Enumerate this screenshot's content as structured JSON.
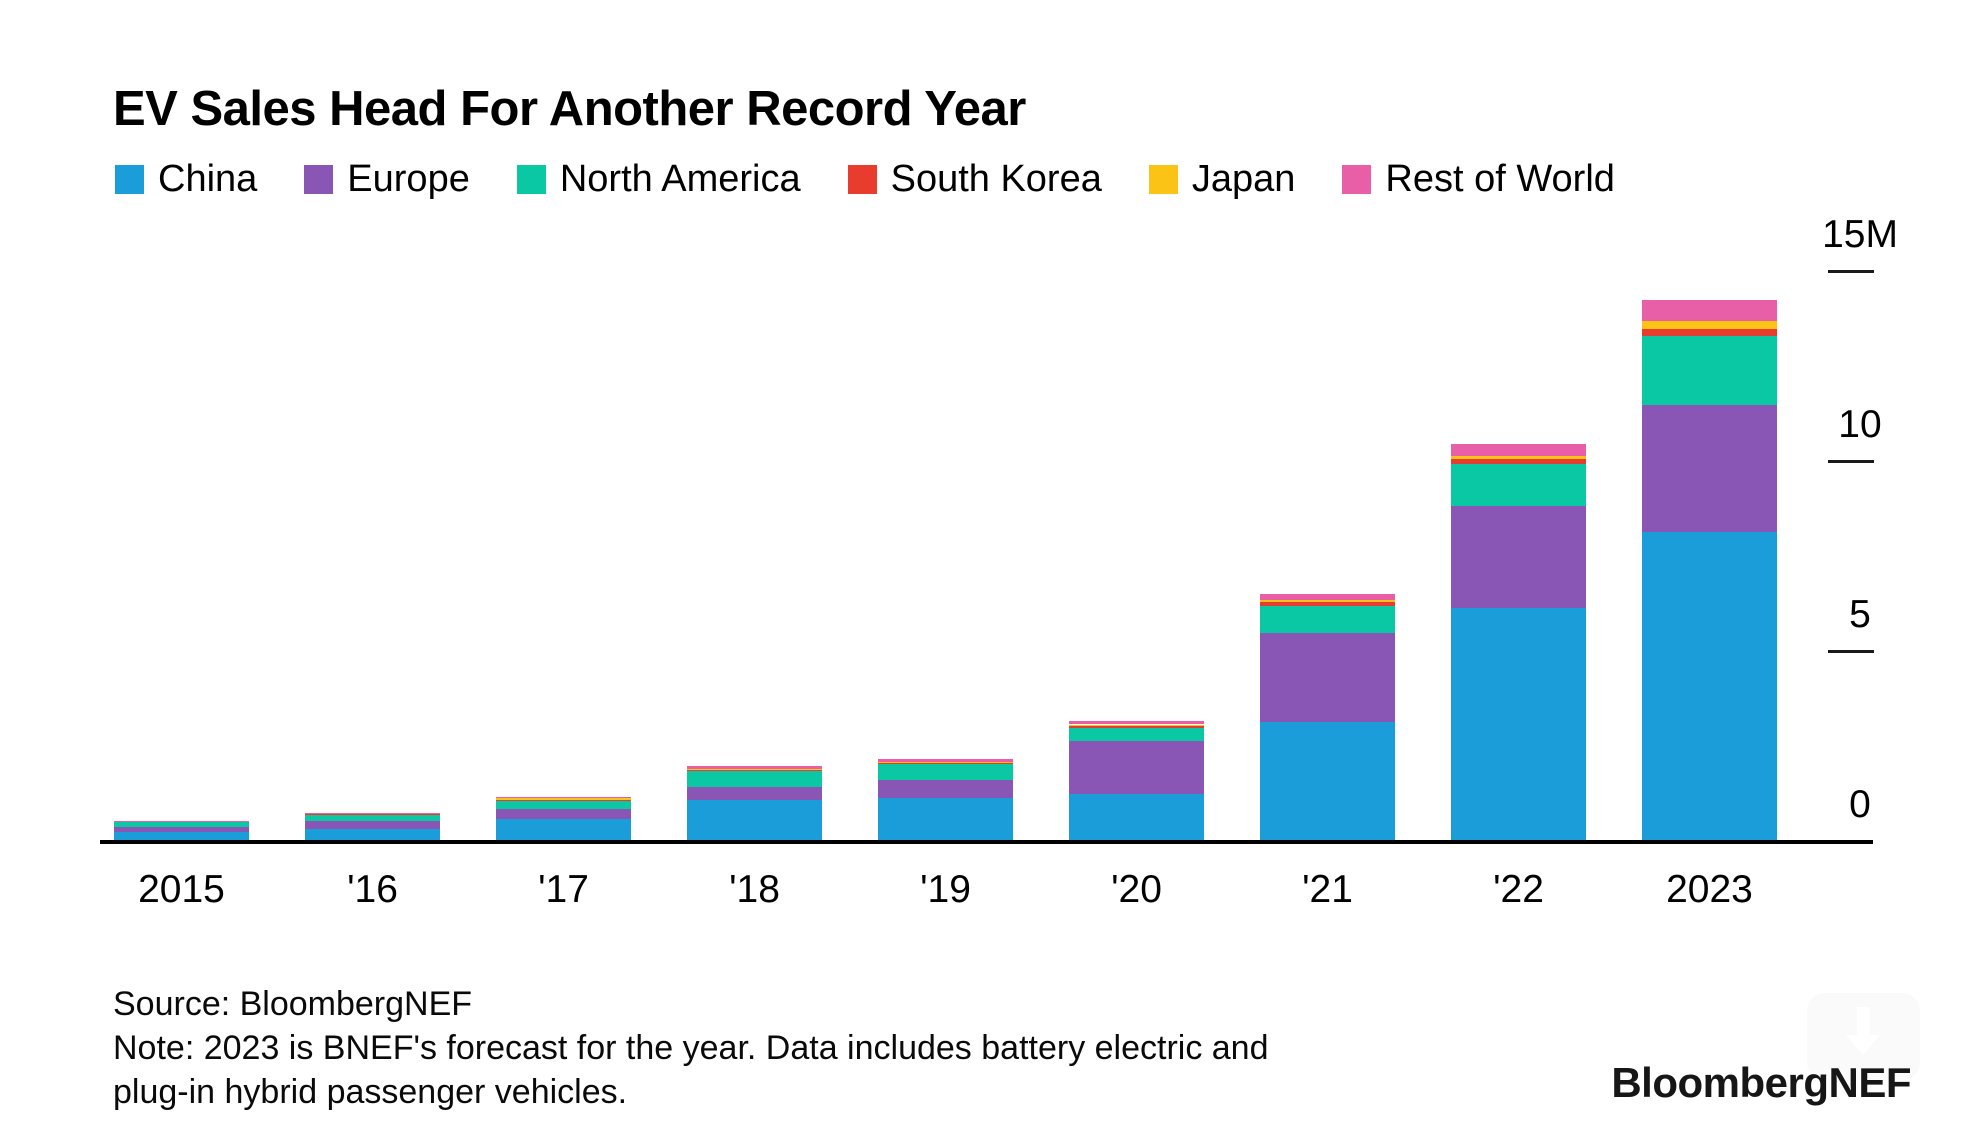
{
  "title": "EV Sales Head For Another Record Year",
  "chart_data": {
    "type": "bar",
    "stacked": true,
    "title": "EV Sales Head For Another Record Year",
    "unit": "million vehicles",
    "categories": [
      "2015",
      "'16",
      "'17",
      "'18",
      "'19",
      "'20",
      "'21",
      "'22",
      "2023"
    ],
    "series": [
      {
        "name": "China",
        "color": "#1a9dd9",
        "values": [
          0.2,
          0.3,
          0.55,
          1.05,
          1.1,
          1.2,
          3.1,
          6.1,
          8.1
        ]
      },
      {
        "name": "Europe",
        "color": "#8a56b5",
        "values": [
          0.15,
          0.2,
          0.27,
          0.35,
          0.47,
          1.4,
          2.35,
          2.7,
          3.35
        ]
      },
      {
        "name": "North America",
        "color": "#0bc8a5",
        "values": [
          0.13,
          0.17,
          0.22,
          0.42,
          0.43,
          0.35,
          0.72,
          1.1,
          1.82
        ]
      },
      {
        "name": "South Korea",
        "color": "#e73c2e",
        "values": [
          0.0,
          0.01,
          0.01,
          0.03,
          0.04,
          0.06,
          0.1,
          0.13,
          0.18
        ]
      },
      {
        "name": "Japan",
        "color": "#fcc317",
        "values": [
          0.02,
          0.02,
          0.05,
          0.03,
          0.02,
          0.03,
          0.05,
          0.08,
          0.2
        ]
      },
      {
        "name": "Rest of World",
        "color": "#e95fa7",
        "values": [
          0.01,
          0.01,
          0.02,
          0.07,
          0.08,
          0.08,
          0.16,
          0.32,
          0.55
        ]
      }
    ],
    "totals": [
      0.51,
      0.71,
      1.12,
      1.95,
      2.14,
      3.12,
      6.48,
      10.43,
      14.2
    ],
    "xlabel": "",
    "ylabel": "",
    "ylim": [
      0,
      15
    ],
    "yticks": [
      {
        "value": 15,
        "label": "15M"
      },
      {
        "value": 10,
        "label": "10"
      },
      {
        "value": 5,
        "label": "5"
      },
      {
        "value": 0,
        "label": "0"
      }
    ],
    "legend_position": "top-left",
    "grid": false
  },
  "footer": {
    "source": "Source: BloombergNEF",
    "note_lines": [
      "Note: 2023 is BNEF's forecast for the year. Data includes battery electric and",
      "plug-in hybrid passenger vehicles."
    ],
    "logo": "BloombergNEF"
  },
  "icons": {
    "download": "download-icon"
  }
}
